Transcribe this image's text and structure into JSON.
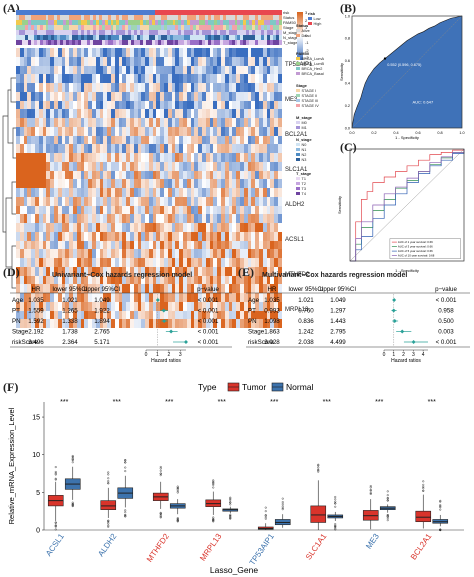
{
  "panels": {
    "A": {
      "label": "(A)",
      "track_labels": [
        "risk",
        "Status",
        "PAM50",
        "Stage",
        "M_stage",
        "N_stage",
        "T_stage"
      ],
      "genes": [
        "TP53AIP1",
        "ME3",
        "BCL2A1",
        "SLC1A1",
        "ALDH2",
        "ACSL1",
        "MTHFD2",
        "MRPL13"
      ],
      "scale_ticks": [
        "3",
        "2",
        "1",
        "0",
        "-1",
        "-2",
        "-3"
      ],
      "legend": {
        "risk": {
          "title": "risk",
          "items": [
            "Low",
            "High"
          ]
        },
        "status": {
          "title": "Status",
          "items": [
            "Alive",
            "Dead"
          ]
        },
        "pam50": {
          "title": "PAM50",
          "items": [
            "BRCA_LumA",
            "BRCA_LumB",
            "BRCA_Her2",
            "BRCA_Basal"
          ]
        },
        "stage": {
          "title": "Stage",
          "items": [
            "STAGE I",
            "STAGE II",
            "STAGE III",
            "STAGE IV"
          ]
        },
        "m_stage": {
          "title": "M_stage",
          "items": [
            "M0",
            "M1"
          ]
        },
        "n_stage": {
          "title": "N_stage",
          "items": [
            "N0",
            "N1",
            "N2",
            "N3"
          ]
        },
        "t_stage": {
          "title": "T_stage",
          "items": [
            "T1",
            "T2",
            "T3",
            "T4"
          ]
        }
      },
      "colors": {
        "high": "#e56b1f",
        "low": "#3a6ec0",
        "risk_high": "#e8474f",
        "risk_low": "#4b7bd0"
      }
    },
    "B": {
      "label": "(B)",
      "xlabel": "1 - Specificity",
      "ylabel": "Sensitivity",
      "threshold_text": "0.552 (0.596, 0.675)",
      "auc_text": "AUC: 0.647",
      "ticks": [
        "0.0",
        "0.2",
        "0.4",
        "0.6",
        "0.8",
        "1.0"
      ]
    },
    "C": {
      "label": "(C)",
      "xlabel": "1 - Specificity",
      "ylabel": "Sensitivity",
      "legend": [
        "AUC of 1 year survival: 0.69",
        "AUC of 3 year survival: 0.66",
        "AUC of 5 year survival: 0.66",
        "AUC of 10 year survival: 0.68"
      ]
    },
    "D": {
      "label": "(D)",
      "title": "Univariant−Cox hazards regression model",
      "headers": [
        "HR",
        "lower 95%CI",
        "upper 95%CI",
        "p−value"
      ],
      "rows": [
        {
          "var": "Age",
          "hr": "1.035",
          "lo": "1.021",
          "hi": "1.049",
          "p": "< 0.001"
        },
        {
          "var": "PT",
          "hr": "1.559",
          "lo": "1.265",
          "hi": "1.922",
          "p": "< 0.001"
        },
        {
          "var": "PN",
          "hr": "1.592",
          "lo": "1.338",
          "hi": "1.894",
          "p": "< 0.001"
        },
        {
          "var": "Stage",
          "hr": "2.192",
          "lo": "1.738",
          "hi": "2.765",
          "p": "< 0.001"
        },
        {
          "var": "riskScore",
          "hr": "3.496",
          "lo": "2.364",
          "hi": "5.171",
          "p": "< 0.001"
        }
      ],
      "axis_ticks": [
        "0",
        "1",
        "2",
        "3"
      ],
      "xlabel": "Hazard ratios"
    },
    "E": {
      "label": "(E)",
      "title": "Multivariant−Cox hazards regression model",
      "headers": [
        "HR",
        "lower 95%CI",
        "upper 95%CI",
        "p−value"
      ],
      "rows": [
        {
          "var": "Age",
          "hr": "1.035",
          "lo": "1.021",
          "hi": "1.049",
          "p": "< 0.001"
        },
        {
          "var": "PT",
          "hr": "0.993",
          "lo": "0.760",
          "hi": "1.297",
          "p": "0.958"
        },
        {
          "var": "PN",
          "hr": "1.098",
          "lo": "0.836",
          "hi": "1.443",
          "p": "0.500"
        },
        {
          "var": "Stage",
          "hr": "1.863",
          "lo": "1.242",
          "hi": "2.795",
          "p": "0.003"
        },
        {
          "var": "riskScore",
          "hr": "3.028",
          "lo": "2.038",
          "hi": "4.499",
          "p": "< 0.001"
        }
      ],
      "axis_ticks": [
        "0",
        "1",
        "2",
        "3",
        "4"
      ],
      "xlabel": "Hazard ratios"
    },
    "F": {
      "label": "(F)",
      "legend_title": "Type",
      "legend_items": [
        {
          "name": "Tumor",
          "color": "#d9342b"
        },
        {
          "name": "Normal",
          "color": "#3d73ad"
        }
      ],
      "ylabel": "Relative_mRNA_Expression_Level",
      "xlabel": "Lasso_Gene",
      "y_ticks": [
        "0",
        "5",
        "10",
        "15"
      ],
      "significance": "***"
    }
  },
  "chart_data": [
    {
      "type": "box",
      "panel": "F",
      "ylim": [
        0,
        17
      ],
      "xlabel": "Lasso_Gene",
      "ylabel": "Relative_mRNA_Expression_Level",
      "categories": [
        "ACSL1",
        "ALDH2",
        "MTHFD2",
        "MRPL13",
        "TP53AIP1",
        "SLC1A1",
        "ME3",
        "BCL2A1"
      ],
      "category_colors": [
        "#3d73ad",
        "#3d73ad",
        "#d9342b",
        "#d9342b",
        "#3d73ad",
        "#d9342b",
        "#3d73ad",
        "#d9342b"
      ],
      "series": [
        {
          "name": "Tumor",
          "boxes": [
            {
              "min": 1.2,
              "q1": 3.2,
              "median": 3.9,
              "q3": 4.6,
              "max": 6.4
            },
            {
              "min": 1.6,
              "q1": 2.7,
              "median": 3.2,
              "q3": 3.9,
              "max": 5.6
            },
            {
              "min": 2.8,
              "q1": 3.9,
              "median": 4.4,
              "q3": 4.9,
              "max": 6.4
            },
            {
              "min": 2.0,
              "q1": 3.1,
              "median": 3.5,
              "q3": 4.0,
              "max": 5.1
            },
            {
              "min": 0.0,
              "q1": 0.1,
              "median": 0.2,
              "q3": 0.4,
              "max": 0.9
            },
            {
              "min": 0.0,
              "q1": 1.0,
              "median": 2.0,
              "q3": 3.2,
              "max": 6.6
            },
            {
              "min": 0.1,
              "q1": 1.3,
              "median": 1.9,
              "q3": 2.6,
              "max": 4.1
            },
            {
              "min": 0.2,
              "q1": 1.1,
              "median": 1.7,
              "q3": 2.5,
              "max": 4.7
            }
          ]
        },
        {
          "name": "Normal",
          "boxes": [
            {
              "min": 4.0,
              "q1": 5.4,
              "median": 6.1,
              "q3": 6.8,
              "max": 8.4
            },
            {
              "min": 3.0,
              "q1": 4.2,
              "median": 4.9,
              "q3": 5.6,
              "max": 7.2
            },
            {
              "min": 2.1,
              "q1": 2.9,
              "median": 3.2,
              "q3": 3.5,
              "max": 4.1
            },
            {
              "min": 2.2,
              "q1": 2.5,
              "median": 2.7,
              "q3": 2.8,
              "max": 3.1
            },
            {
              "min": 0.3,
              "q1": 0.7,
              "median": 1.0,
              "q3": 1.4,
              "max": 2.1
            },
            {
              "min": 1.2,
              "q1": 1.6,
              "median": 1.8,
              "q3": 2.0,
              "max": 2.4
            },
            {
              "min": 2.3,
              "q1": 2.7,
              "median": 2.9,
              "q3": 3.1,
              "max": 3.4
            },
            {
              "min": 0.5,
              "q1": 0.9,
              "median": 1.1,
              "q3": 1.4,
              "max": 2.0
            }
          ]
        }
      ]
    },
    {
      "type": "forest",
      "panel": "D",
      "xlim": [
        0,
        3.5
      ],
      "items": [
        {
          "name": "Age",
          "hr": 1.035,
          "lo": 1.021,
          "hi": 1.049
        },
        {
          "name": "PT",
          "hr": 1.559,
          "lo": 1.265,
          "hi": 1.922
        },
        {
          "name": "PN",
          "hr": 1.592,
          "lo": 1.338,
          "hi": 1.894
        },
        {
          "name": "Stage",
          "hr": 2.192,
          "lo": 1.738,
          "hi": 2.765
        },
        {
          "name": "riskScore",
          "hr": 3.496,
          "lo": 2.364,
          "hi": 5.171
        }
      ]
    },
    {
      "type": "forest",
      "panel": "E",
      "xlim": [
        0,
        4.5
      ],
      "items": [
        {
          "name": "Age",
          "hr": 1.035,
          "lo": 1.021,
          "hi": 1.049
        },
        {
          "name": "PT",
          "hr": 0.993,
          "lo": 0.76,
          "hi": 1.297
        },
        {
          "name": "PN",
          "hr": 1.098,
          "lo": 0.836,
          "hi": 1.443
        },
        {
          "name": "Stage",
          "hr": 1.863,
          "lo": 1.242,
          "hi": 2.795
        },
        {
          "name": "riskScore",
          "hr": 3.028,
          "lo": 2.038,
          "hi": 4.499
        }
      ]
    },
    {
      "type": "line",
      "panel": "B",
      "xlim": [
        0,
        1
      ],
      "ylim": [
        0,
        1
      ],
      "series": [
        {
          "name": "",
          "x": [
            0,
            0.02,
            0.05,
            0.08,
            0.1,
            0.12,
            0.15,
            0.2,
            0.25,
            0.3,
            0.35,
            0.4,
            0.45,
            0.5,
            0.55,
            0.6,
            0.65,
            0.7,
            0.75,
            0.8,
            0.85,
            0.9,
            0.95,
            1.0
          ],
          "y": [
            0,
            0.12,
            0.2,
            0.27,
            0.34,
            0.4,
            0.46,
            0.53,
            0.58,
            0.62,
            0.66,
            0.7,
            0.74,
            0.78,
            0.81,
            0.84,
            0.86,
            0.89,
            0.91,
            0.94,
            0.96,
            0.98,
            0.99,
            1.0
          ]
        }
      ]
    },
    {
      "type": "line",
      "panel": "C",
      "xlim": [
        0,
        1
      ],
      "ylim": [
        0,
        1
      ],
      "series": [
        {
          "name": "AUC of 1 year survival: 0.69",
          "color": "#e2484f",
          "x": [
            0,
            0.05,
            0.1,
            0.15,
            0.2,
            0.3,
            0.4,
            0.5,
            0.6,
            0.7,
            0.8,
            0.9,
            1.0
          ],
          "y": [
            0,
            0.35,
            0.55,
            0.62,
            0.7,
            0.75,
            0.8,
            0.85,
            0.9,
            0.95,
            0.97,
            0.99,
            1.0
          ]
        },
        {
          "name": "AUC of 3 year survival: 0.66",
          "color": "#2f8f4f",
          "x": [
            0,
            0.05,
            0.1,
            0.2,
            0.3,
            0.4,
            0.5,
            0.6,
            0.7,
            0.8,
            0.9,
            1.0
          ],
          "y": [
            0,
            0.15,
            0.3,
            0.45,
            0.55,
            0.65,
            0.72,
            0.8,
            0.86,
            0.92,
            0.97,
            1.0
          ]
        },
        {
          "name": "AUC of 5 year survival: 0.66",
          "color": "#2f5fb3",
          "x": [
            0,
            0.05,
            0.1,
            0.2,
            0.3,
            0.4,
            0.5,
            0.6,
            0.7,
            0.8,
            0.9,
            1.0
          ],
          "y": [
            0,
            0.1,
            0.22,
            0.38,
            0.5,
            0.6,
            0.7,
            0.78,
            0.85,
            0.9,
            0.96,
            1.0
          ]
        },
        {
          "name": "AUC of 10 year survival: 0.68",
          "color": "#8a5fb3",
          "x": [
            0,
            0.05,
            0.1,
            0.2,
            0.3,
            0.4,
            0.5,
            0.6,
            0.7,
            0.8,
            0.9,
            1.0
          ],
          "y": [
            0,
            0.2,
            0.35,
            0.5,
            0.6,
            0.66,
            0.74,
            0.8,
            0.88,
            0.93,
            0.97,
            1.0
          ]
        }
      ]
    }
  ]
}
